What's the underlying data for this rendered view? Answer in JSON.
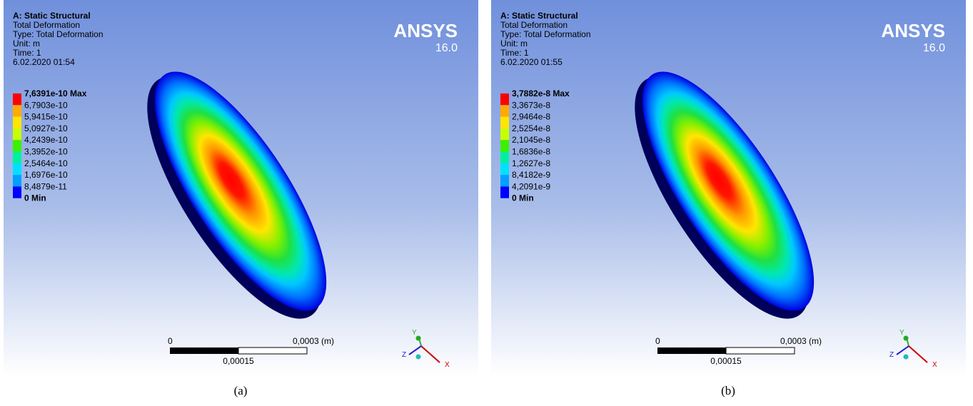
{
  "legend_colors": [
    "#ff0000",
    "#ffaa00",
    "#ffe600",
    "#c8ff00",
    "#3cf000",
    "#00f0a0",
    "#00e0ff",
    "#00a0ff",
    "#0000ff"
  ],
  "panels": [
    {
      "header": [
        "A: Static Structural",
        "Total Deformation",
        "Type: Total Deformation",
        "Unit: m",
        "Time: 1",
        "6.02.2020 01:54"
      ],
      "brand": "ANSYS",
      "version": "16.0",
      "legend": [
        "7,6391e-10 Max",
        "6,7903e-10",
        "5,9415e-10",
        "5,0927e-10",
        "4,2439e-10",
        "3,3952e-10",
        "2,5464e-10",
        "1,6976e-10",
        "8,4879e-11",
        "0 Min"
      ],
      "scale": {
        "start": "0",
        "end": "0,0003 (m)",
        "mid": "0,00015"
      },
      "triad": [
        "Y",
        "Z",
        "X"
      ],
      "caption": "(a)"
    },
    {
      "header": [
        "A: Static Structural",
        "Total Deformation",
        "Type: Total Deformation",
        "Unit: m",
        "Time: 1",
        "6.02.2020 01:55"
      ],
      "brand": "ANSYS",
      "version": "16.0",
      "legend": [
        "3,7882e-8 Max",
        "3,3673e-8",
        "2,9464e-8",
        "2,5254e-8",
        "2,1045e-8",
        "1,6836e-8",
        "1,2627e-8",
        "8,4182e-9",
        "4,2091e-9",
        "0 Min"
      ],
      "scale": {
        "start": "0",
        "end": "0,0003 (m)",
        "mid": "0,00015"
      },
      "triad": [
        "Y",
        "Z",
        "X"
      ],
      "caption": "(b)"
    }
  ]
}
